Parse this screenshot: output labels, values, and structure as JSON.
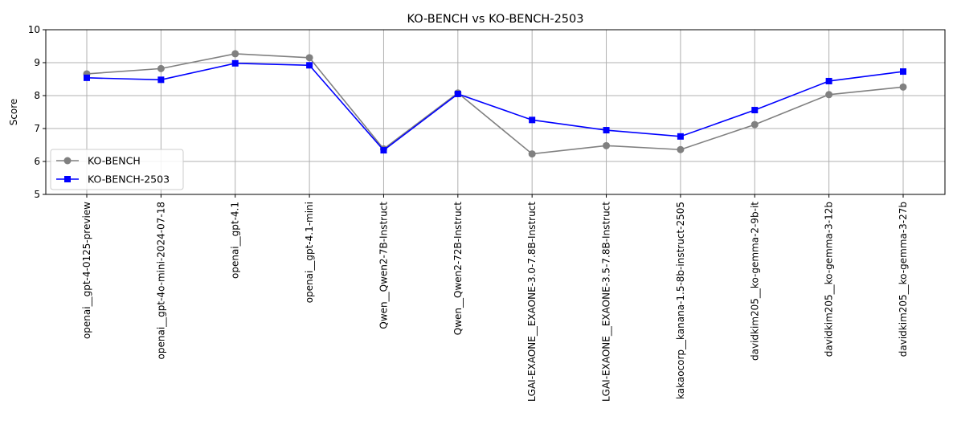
{
  "chart_data": {
    "type": "line",
    "title": "KO-BENCH vs KO-BENCH-2503",
    "xlabel": "",
    "ylabel": "Score",
    "ylim": [
      5,
      10
    ],
    "yticks": [
      5,
      6,
      7,
      8,
      9,
      10
    ],
    "grid": true,
    "legend_position": "lower-left",
    "categories": [
      "openai__gpt-4-0125-preview",
      "openai__gpt-4o-mini-2024-07-18",
      "openai__gpt-4.1",
      "openai__gpt-4.1-mini",
      "Qwen__Qwen2-7B-Instruct",
      "Qwen__Qwen2-72B-Instruct",
      "LGAI-EXAONE__EXAONE-3.0-7.8B-Instruct",
      "LGAI-EXAONE__EXAONE-3.5-7.8B-Instruct",
      "kakaocorp__kanana-1.5-8b-instruct-2505",
      "davidkim205__ko-gemma-2-9b-it",
      "davidkim205__ko-gemma-3-12b",
      "davidkim205__ko-gemma-3-27b"
    ],
    "series": [
      {
        "name": "KO-BENCH",
        "color": "#808080",
        "marker": "circle",
        "values": [
          8.66,
          8.82,
          9.27,
          9.15,
          6.38,
          8.08,
          6.23,
          6.48,
          6.36,
          7.12,
          8.03,
          8.26
        ]
      },
      {
        "name": "KO-BENCH-2503",
        "color": "#0000ff",
        "marker": "square",
        "values": [
          8.54,
          8.48,
          8.98,
          8.92,
          6.34,
          8.05,
          7.26,
          6.95,
          6.76,
          7.56,
          8.44,
          8.73
        ]
      }
    ]
  }
}
